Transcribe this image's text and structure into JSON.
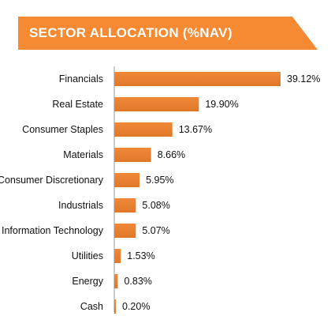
{
  "colors": {
    "banner": "#f58a33",
    "bar": "#f0883a",
    "bar_dark": "#e0782a",
    "axis": "#999999",
    "text": "#111111"
  },
  "chart_data": {
    "type": "bar",
    "orientation": "horizontal",
    "title": "SECTOR ALLOCATION (%NAV)",
    "categories": [
      "Financials",
      "Real Estate",
      "Consumer Staples",
      "Materials",
      "Consumer Discretionary",
      "Industrials",
      "Information Technology",
      "Utilities",
      "Energy",
      "Cash"
    ],
    "values": [
      39.12,
      19.9,
      13.67,
      8.66,
      5.95,
      5.08,
      5.07,
      1.53,
      0.83,
      0.2
    ],
    "value_labels": [
      "39.12%",
      "19.90%",
      "13.67%",
      "8.66%",
      "5.95%",
      "5.08%",
      "5.07%",
      "1.53%",
      "0.83%",
      "0.20%"
    ],
    "xlim": [
      0,
      40
    ],
    "grid": false,
    "legend": "none"
  }
}
